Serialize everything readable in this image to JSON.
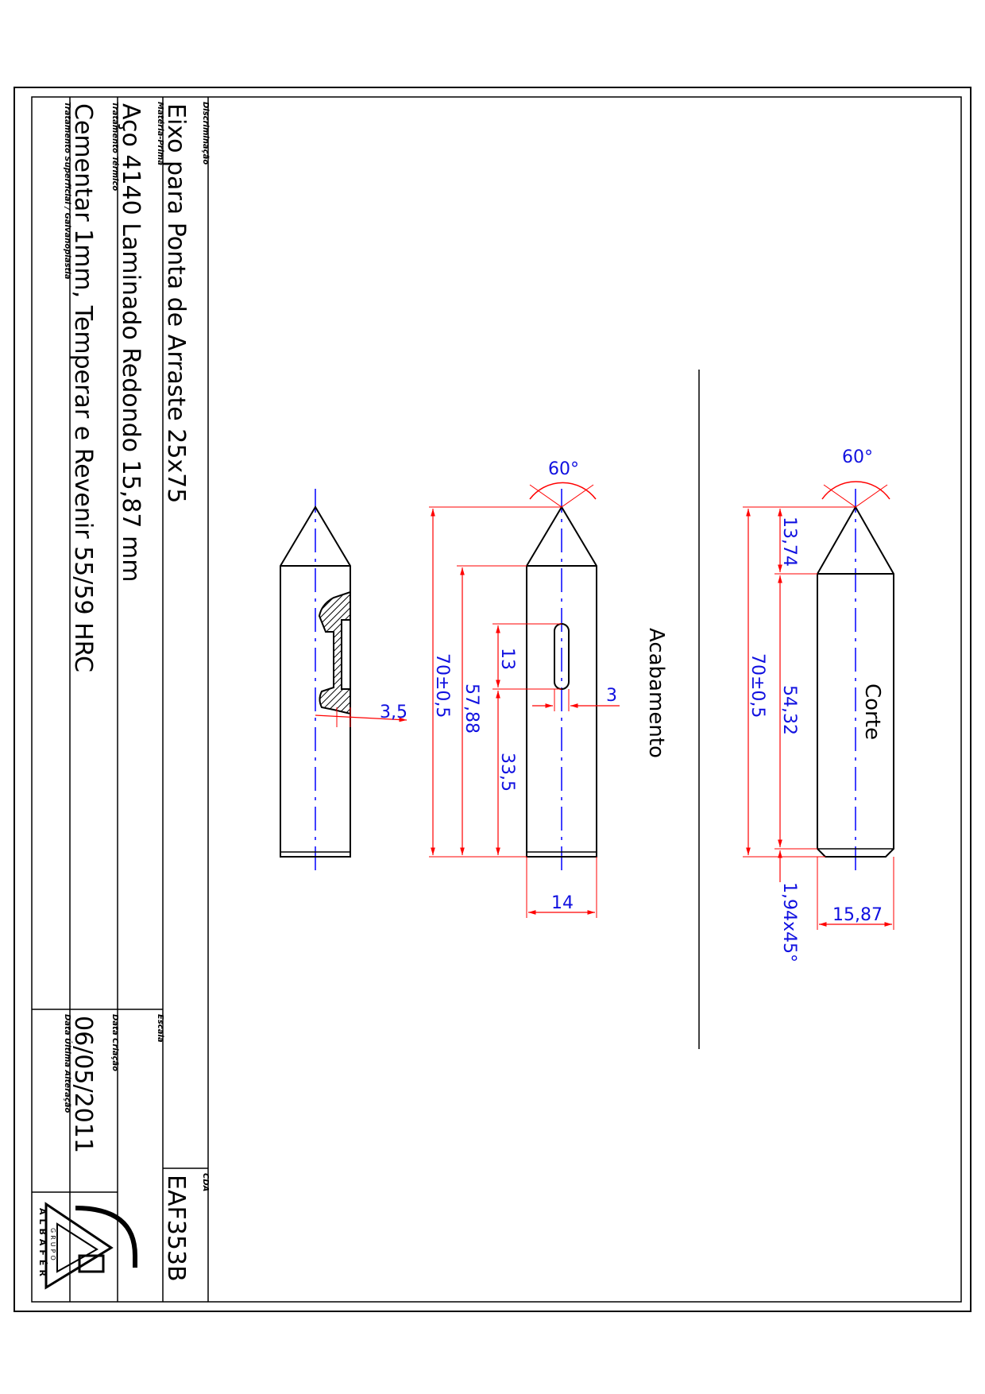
{
  "title_block": {
    "description_label": "Discriminação",
    "description": "Eixo para Ponta de Arraste 25x75",
    "code_label": "CDA",
    "code": "EAF353B",
    "material_label": "Matéria-Prima",
    "material": "Aço 4140 Laminado Redondo 15,87 mm",
    "scale_label": "Escala",
    "heat_treatment_label": "Tratamento Térmico",
    "heat_treatment": "Cementar 1mm, Temperar e Revenir 55/59 HRC",
    "creation_date_label": "Data Criação",
    "creation_date": "06/05/2011",
    "surface_treatment_label": "Tratamento Superficial / Galvanoplastia",
    "last_change_label": "Data Última Alteração",
    "logo_text": "ALBAFÉR",
    "logo_subtext": "GRUPO"
  },
  "views": {
    "finish_label": "Acabamento",
    "cut_label": "Corte"
  },
  "dimensions": {
    "angle_finish": "60°",
    "angle_cut": "60°",
    "slot_depth": "3,5",
    "overall_length_finish": "70±0,5",
    "body_length": "57,88",
    "slot_length": "13",
    "slot_width": "3",
    "slot_position": "33,5",
    "diameter_finish": "14",
    "overall_length_cut": "70±0,5",
    "cone_length": "13,74",
    "cut_body_length": "54,32",
    "chamfer": "1,94x45°",
    "diameter_cut": "15,87"
  },
  "colors": {
    "dimension_lines": "#ff0000",
    "dimension_text": "#1010e0",
    "center_lines": "#0000ff",
    "outline": "#000000"
  }
}
